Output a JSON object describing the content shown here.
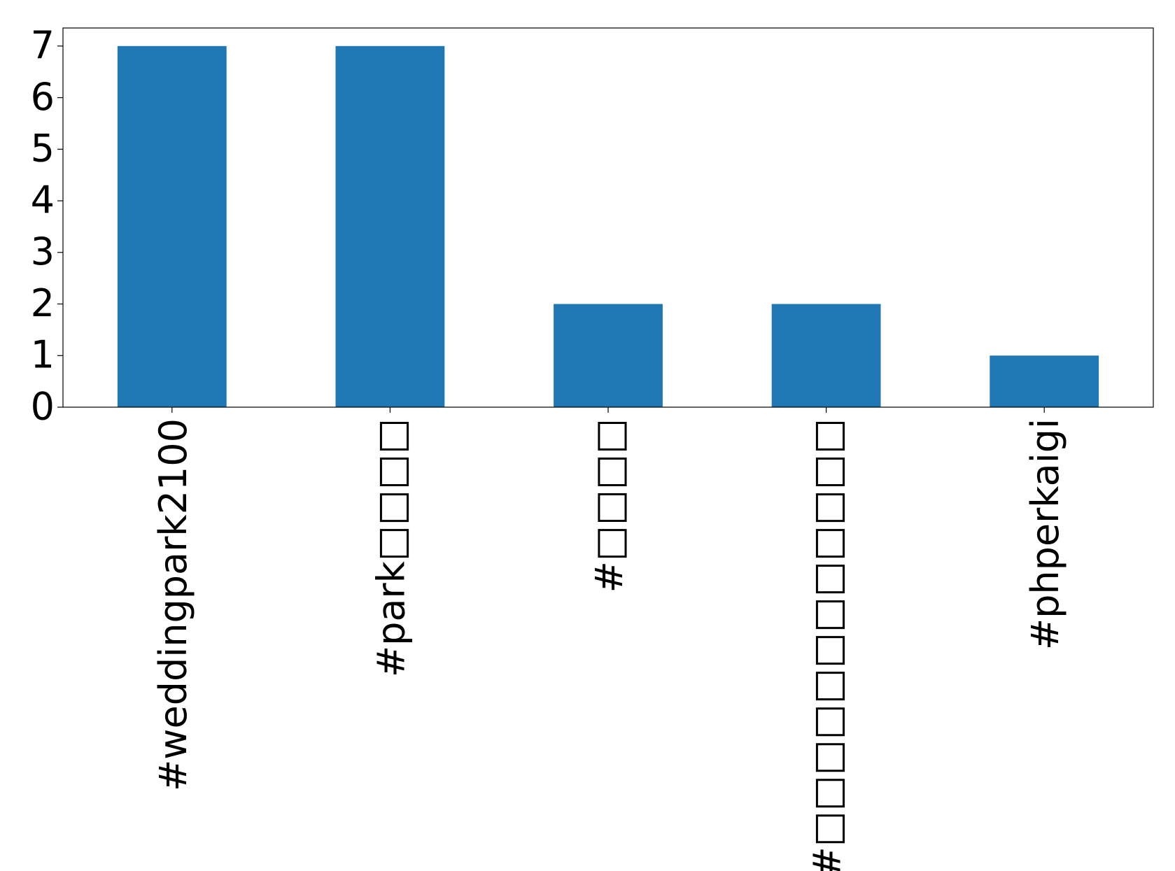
{
  "chart_data": {
    "type": "bar",
    "categories": [
      "#weddingpark2100",
      "#park□□□□",
      "#□□□□",
      "#□□□□□□□□□□□□",
      "#phperkaigi"
    ],
    "values": [
      7,
      7,
      2,
      2,
      1
    ],
    "color": "#1f77b4",
    "ylim": [
      0,
      7.35
    ],
    "yticks": [
      0,
      1,
      2,
      3,
      4,
      5,
      6,
      7
    ]
  }
}
